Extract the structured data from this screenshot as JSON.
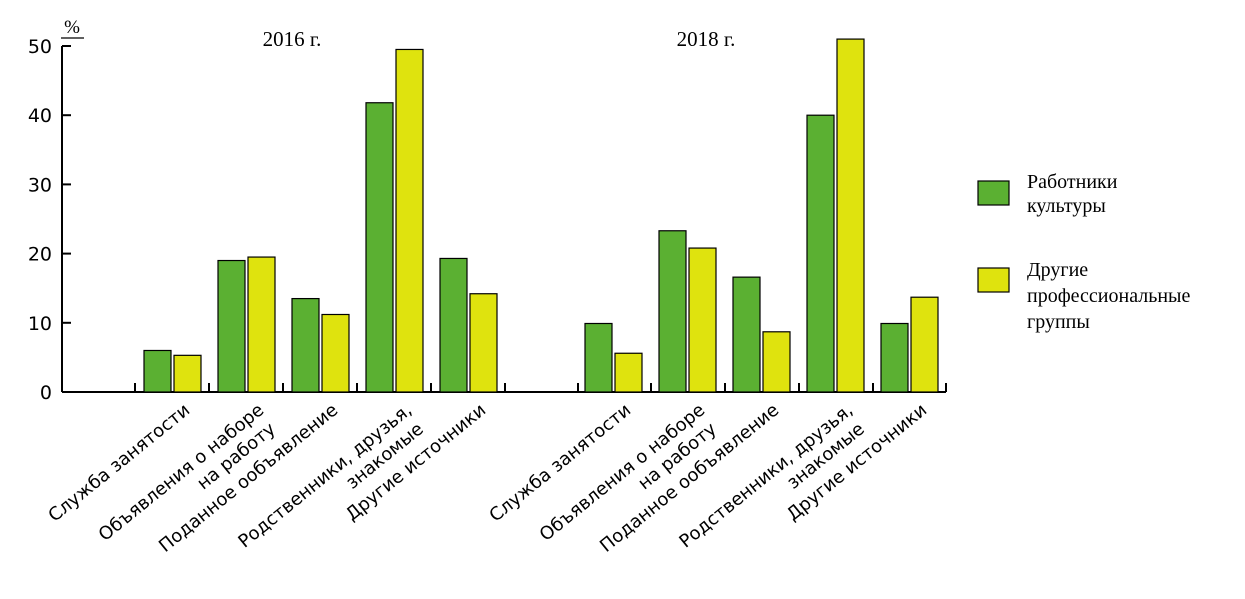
{
  "chart_data": {
    "type": "bar",
    "yunit": "%",
    "ylim": [
      0,
      50
    ],
    "yticks": [
      0,
      10,
      20,
      30,
      40,
      50
    ],
    "categories": [
      [
        "Служба занятости"
      ],
      [
        "Объявления о наборе",
        "на работу"
      ],
      [
        "Поданное ообъявление"
      ],
      [
        "Родственники, друзья,",
        "знакомые"
      ],
      [
        "Другие источники"
      ]
    ],
    "panels": [
      {
        "title": "2016 г.",
        "series": [
          {
            "name": "Работники культуры",
            "values": [
              6,
              19,
              13.5,
              41.8,
              19.3
            ]
          },
          {
            "name": "Другие профессиональные группы",
            "values": [
              5.3,
              19.5,
              11.2,
              49.5,
              14.2
            ]
          }
        ]
      },
      {
        "title": "2018 г.",
        "series": [
          {
            "name": "Работники культуры",
            "values": [
              9.9,
              23.3,
              16.6,
              40,
              9.9
            ]
          },
          {
            "name": "Другие профессиональные группы",
            "values": [
              5.6,
              20.8,
              8.7,
              51,
              13.7
            ]
          }
        ]
      }
    ],
    "legend": {
      "placement": "right",
      "items": [
        {
          "lines": [
            "Работники",
            "культуры"
          ],
          "color": "#5bb032"
        },
        {
          "lines": [
            "Другие",
            "профессиональные",
            "группы"
          ],
          "color": "#dfe30e"
        }
      ]
    },
    "grid": false
  }
}
